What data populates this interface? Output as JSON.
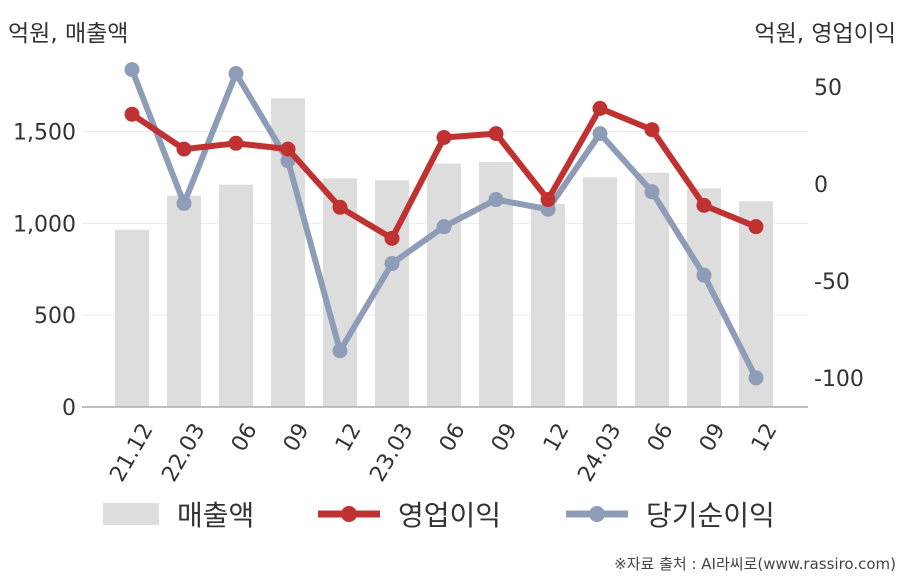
{
  "unit_left": "억원, 매출액",
  "unit_right": "억원, 영업이익",
  "source": "※자료 출처 : AI라씨로(www.rassiro.com)",
  "chart_data": {
    "type": "bar+line",
    "categories": [
      "21.12",
      "22.03",
      "06",
      "09",
      "12",
      "23.03",
      "06",
      "09",
      "12",
      "24.03",
      "06",
      "09",
      "12"
    ],
    "left_axis": {
      "ticks": [
        "0",
        "500",
        "1,000",
        "1,500"
      ],
      "range": [
        0,
        1900
      ]
    },
    "right_axis": {
      "ticks": [
        "-100",
        "-50",
        "0",
        "50"
      ],
      "range": [
        -115,
        65
      ]
    },
    "series": [
      {
        "name": "매출액",
        "kind": "bar",
        "axis": "left",
        "color": "#dddddd",
        "values": [
          965,
          1150,
          1210,
          1680,
          1245,
          1235,
          1325,
          1335,
          1105,
          1250,
          1275,
          1190,
          1120
        ]
      },
      {
        "name": "영업이익",
        "kind": "line",
        "axis": "right",
        "color": "#c03232",
        "values": [
          36,
          18,
          21,
          18,
          -12,
          -28,
          24,
          26,
          -8,
          39,
          28,
          -11,
          -22
        ]
      },
      {
        "name": "당기순이익",
        "kind": "line",
        "axis": "right",
        "color": "#8f9cb8",
        "values": [
          59,
          -10,
          57,
          12,
          -86,
          -41,
          -22,
          -8,
          -13,
          26,
          -4,
          -47,
          -100
        ]
      }
    ],
    "legend_position": "bottom",
    "grid": true
  }
}
